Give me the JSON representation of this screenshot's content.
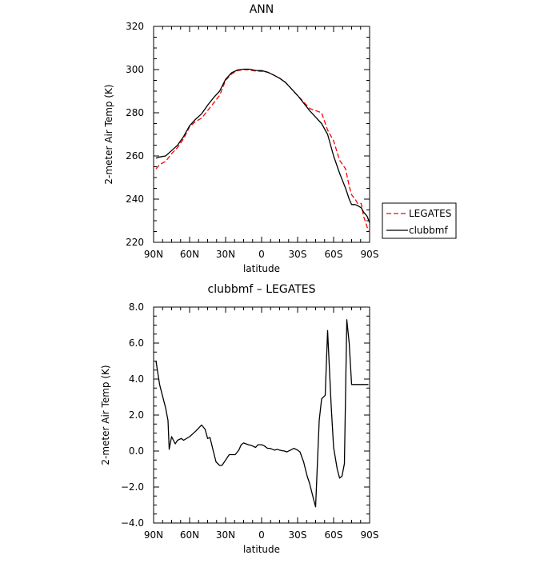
{
  "chart_data": [
    {
      "type": "line",
      "title": "ANN",
      "xlabel": "latitude",
      "ylabel": "2-meter Air Temp (K)",
      "xlim": [
        90,
        -90
      ],
      "ylim": [
        220,
        320
      ],
      "x_ticks": [
        90,
        60,
        30,
        0,
        -30,
        -60,
        -90
      ],
      "x_tick_labels": [
        "90N",
        "60N",
        "30N",
        "0",
        "30S",
        "60S",
        "90S"
      ],
      "y_ticks": [
        220,
        240,
        260,
        280,
        300,
        320
      ],
      "y_tick_labels": [
        "220",
        "240",
        "260",
        "280",
        "300",
        "320"
      ],
      "grid": false,
      "legend_position": "outside-right-bottom",
      "series": [
        {
          "name": "LEGATES",
          "color": "#ff0000",
          "dash": "dashed",
          "x": [
            88,
            85,
            80,
            75,
            70,
            65,
            60,
            55,
            50,
            45,
            40,
            35,
            30,
            25,
            20,
            15,
            10,
            5,
            0,
            -5,
            -10,
            -15,
            -20,
            -25,
            -30,
            -35,
            -40,
            -45,
            -50,
            -55,
            -60,
            -65,
            -70,
            -73,
            -75,
            -78,
            -80,
            -83,
            -85,
            -88,
            -90
          ],
          "y": [
            254,
            256,
            257.5,
            261,
            264,
            268,
            273.5,
            276,
            277.5,
            281,
            284.5,
            288,
            295,
            298,
            299.5,
            300,
            299.8,
            299.3,
            299.2,
            298.8,
            297.5,
            296,
            294,
            291,
            288,
            285,
            282,
            281,
            280,
            272,
            267,
            258,
            254,
            246,
            242,
            240,
            238,
            238,
            232,
            227,
            225
          ]
        },
        {
          "name": "clubbmf",
          "color": "#000000",
          "dash": "solid",
          "x": [
            88,
            85,
            80,
            75,
            70,
            65,
            60,
            55,
            50,
            45,
            40,
            35,
            30,
            25,
            20,
            15,
            10,
            5,
            0,
            -5,
            -10,
            -15,
            -20,
            -25,
            -30,
            -35,
            -40,
            -45,
            -50,
            -55,
            -60,
            -65,
            -70,
            -73,
            -75,
            -78,
            -80,
            -83,
            -85,
            -88,
            -90
          ],
          "y": [
            259,
            259.5,
            260,
            262.5,
            265,
            269,
            274,
            277,
            279.5,
            283.5,
            287,
            290,
            295.5,
            298.5,
            299.8,
            300.2,
            300.2,
            299.6,
            299.5,
            298.8,
            297.5,
            296,
            294,
            291,
            288,
            284.5,
            281,
            278,
            275,
            270,
            260,
            252,
            245,
            240,
            237.5,
            237.5,
            237,
            236,
            234,
            232,
            229
          ]
        }
      ]
    },
    {
      "type": "line",
      "title": "clubbmf – LEGATES",
      "xlabel": "latitude",
      "ylabel": "2-meter Air Temp (K)",
      "xlim": [
        90,
        -90
      ],
      "ylim": [
        -4,
        8
      ],
      "x_ticks": [
        90,
        60,
        30,
        0,
        -30,
        -60,
        -90
      ],
      "x_tick_labels": [
        "90N",
        "60N",
        "30N",
        "0",
        "30S",
        "60S",
        "90S"
      ],
      "y_ticks": [
        -4,
        -2,
        0,
        2,
        4,
        6,
        8
      ],
      "y_tick_labels": [
        "−4.0",
        "−2.0",
        "0.0",
        "2.0",
        "4.0",
        "6.0",
        "8.0"
      ],
      "grid": false,
      "series": [
        {
          "color": "#000000",
          "dash": "solid",
          "x": [
            88,
            85,
            80,
            78,
            77,
            75,
            72,
            70,
            67,
            65,
            60,
            55,
            50,
            47,
            45,
            43,
            41,
            38,
            35,
            33,
            30,
            27,
            24,
            22,
            19,
            17,
            15,
            13,
            11,
            8,
            5,
            3,
            0,
            -2,
            -5,
            -7,
            -9,
            -11,
            -13,
            -15,
            -17,
            -19,
            -21,
            -24,
            -27,
            -30,
            -32,
            -35,
            -38,
            -40,
            -43,
            -45,
            -48,
            -50,
            -53,
            -55,
            -58,
            -60,
            -63,
            -65,
            -67,
            -69,
            -71,
            -73,
            -75,
            -77,
            -79,
            -81,
            -83,
            -85,
            -87,
            -89
          ],
          "y": [
            5,
            3.7,
            2.4,
            1.7,
            0.1,
            0.8,
            0.4,
            0.6,
            0.7,
            0.6,
            0.8,
            1.1,
            1.45,
            1.2,
            0.7,
            0.75,
            0.2,
            -0.6,
            -0.8,
            -0.8,
            -0.5,
            -0.2,
            -0.2,
            -0.2,
            0.05,
            0.35,
            0.45,
            0.4,
            0.35,
            0.3,
            0.2,
            0.35,
            0.35,
            0.3,
            0.15,
            0.15,
            0.1,
            0.05,
            0.1,
            0.05,
            0.02,
            0,
            -0.05,
            0.05,
            0.15,
            0.05,
            -0.05,
            -0.6,
            -1.4,
            -1.8,
            -2.6,
            -3.1,
            1.7,
            2.9,
            3.1,
            6.7,
            2.5,
            0.2,
            -1.0,
            -1.5,
            -1.4,
            -0.7,
            7.3,
            6.0,
            3.7,
            3.7,
            3.7,
            3.7,
            3.7,
            3.7,
            3.7,
            3.7
          ]
        }
      ]
    }
  ],
  "legend": {
    "items": [
      {
        "label": "LEGATES",
        "color": "#ff0000",
        "dash": "dashed"
      },
      {
        "label": "clubbmf",
        "color": "#000000",
        "dash": "solid"
      }
    ]
  }
}
